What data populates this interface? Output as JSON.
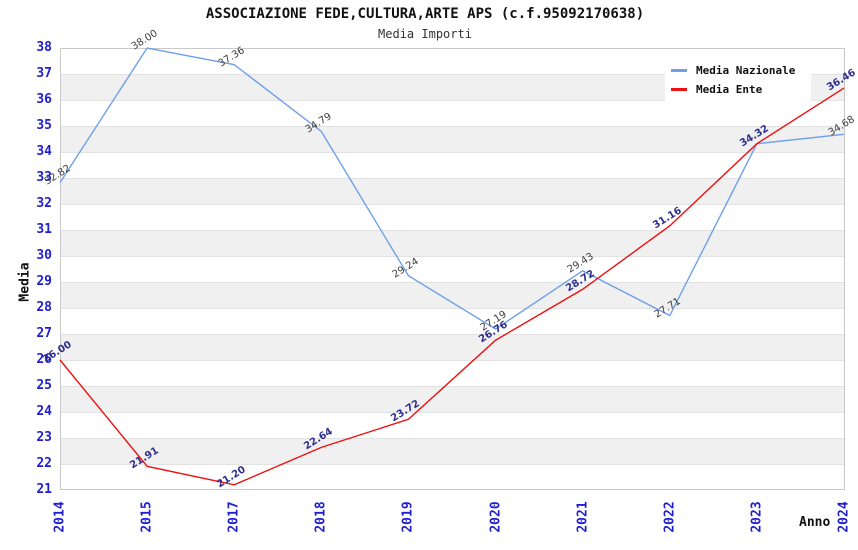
{
  "header": {
    "title": "ASSOCIAZIONE FEDE,CULTURA,ARTE APS (c.f.95092170638)",
    "subtitle": "Media Importi"
  },
  "chart_data": {
    "type": "line",
    "title": "ASSOCIAZIONE FEDE,CULTURA,ARTE APS (c.f.95092170638)",
    "subtitle": "Media Importi",
    "xlabel": "Anno",
    "ylabel": "Media",
    "x": [
      "2014",
      "2015",
      "2017",
      "2018",
      "2019",
      "2020",
      "2021",
      "2022",
      "2023",
      "2024"
    ],
    "ylim": [
      21,
      38
    ],
    "yticks": [
      38,
      37,
      36,
      35,
      34,
      33,
      32,
      31,
      30,
      29,
      28,
      27,
      26,
      25,
      24,
      23,
      22,
      21
    ],
    "grid": "horizontal-alternating-bands",
    "legend_position": "top-right",
    "series": [
      {
        "name": "Media Nazionale",
        "color": "#6fa0e8",
        "label_color": "#3c3c3c",
        "label_weight": "400",
        "values": [
          32.82,
          38.0,
          37.36,
          34.79,
          29.24,
          27.19,
          29.43,
          27.71,
          34.32,
          34.68
        ],
        "labels": [
          "32.82",
          "38.00",
          "37.36",
          "34.79",
          "29.24",
          "27.19",
          "29.43",
          "27.71",
          null,
          "34.68"
        ]
      },
      {
        "name": "Media Ente",
        "color": "#ee1010",
        "label_color": "#2e2e8f",
        "label_weight": "700",
        "values": [
          26.0,
          21.91,
          21.2,
          22.64,
          23.72,
          26.76,
          28.72,
          31.16,
          34.32,
          36.46
        ],
        "labels": [
          "26.00",
          "21.91",
          "21.20",
          "22.64",
          "23.72",
          "26.76",
          "28.72",
          "31.16",
          "34.32",
          "36.46"
        ]
      }
    ],
    "colors": {
      "axis_tick_text": "#1f1fd0",
      "band_gray": "#f0f0f0",
      "band_line": "#e2e2e2",
      "plot_border": "#c9c9c9",
      "title_text": "#111111"
    }
  }
}
